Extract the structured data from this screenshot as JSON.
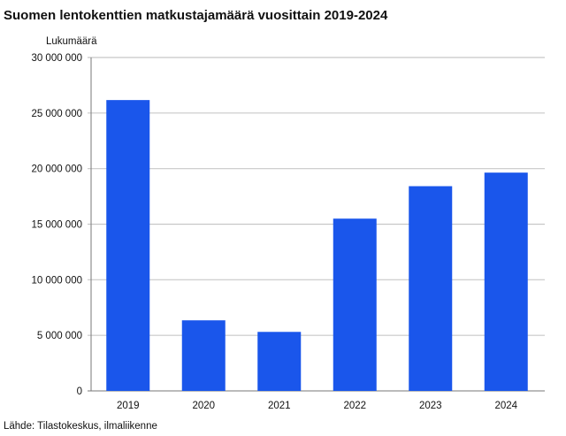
{
  "chart_data": {
    "type": "bar",
    "title": "Suomen lentokenttien matkustajamäärä vuosittain 2019-2024",
    "ylabel": "Lukumäärä",
    "xlabel": "",
    "categories": [
      "2019",
      "2020",
      "2021",
      "2022",
      "2023",
      "2024"
    ],
    "values": [
      26170000,
      6350000,
      5310000,
      15500000,
      18420000,
      19640000
    ],
    "ylim": [
      0,
      30000000
    ],
    "yticks": [
      0,
      5000000,
      10000000,
      15000000,
      20000000,
      25000000,
      30000000
    ],
    "ytick_labels": [
      "0",
      "5 000 000",
      "10 000 000",
      "15 000 000",
      "20 000 000",
      "25 000 000",
      "30 000 000"
    ],
    "grid": true,
    "bar_color": "#1a56eb",
    "source": "Lähde: Tilastokeskus, ilmaliikenne"
  }
}
